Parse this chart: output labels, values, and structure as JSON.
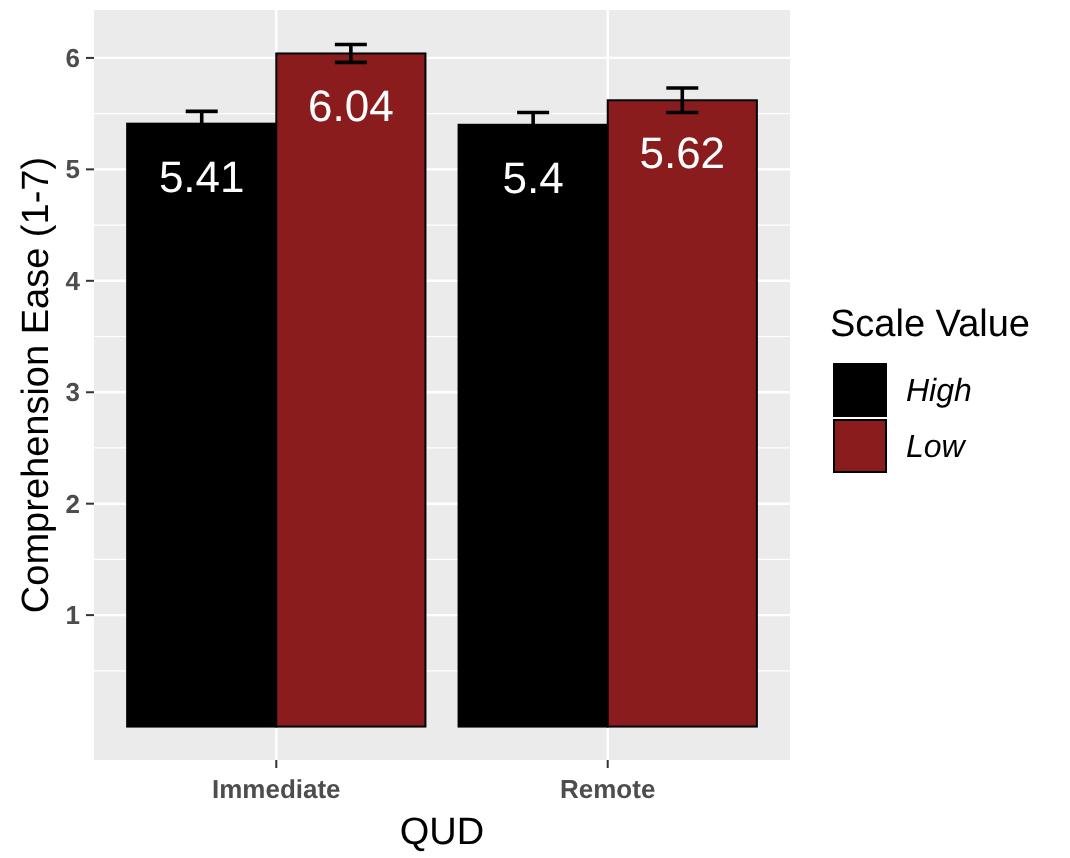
{
  "chart_data": {
    "type": "bar",
    "xlabel": "QUD",
    "ylabel": "Comprehension Ease (1-7)",
    "legend_title": "Scale Value",
    "categories": [
      "Immediate",
      "Remote"
    ],
    "series": [
      {
        "name": "High",
        "color": "#000000",
        "values": [
          5.41,
          5.4
        ],
        "errors": [
          0.11,
          0.11
        ]
      },
      {
        "name": "Low",
        "color": "#8b1c1e",
        "values": [
          6.04,
          5.62
        ],
        "errors": [
          0.08,
          0.11
        ]
      }
    ],
    "ylim": [
      -0.3,
      6.43
    ],
    "yticks": [
      1,
      2,
      3,
      4,
      5,
      6
    ],
    "grid": true,
    "legend": "right",
    "data_labels": true
  }
}
